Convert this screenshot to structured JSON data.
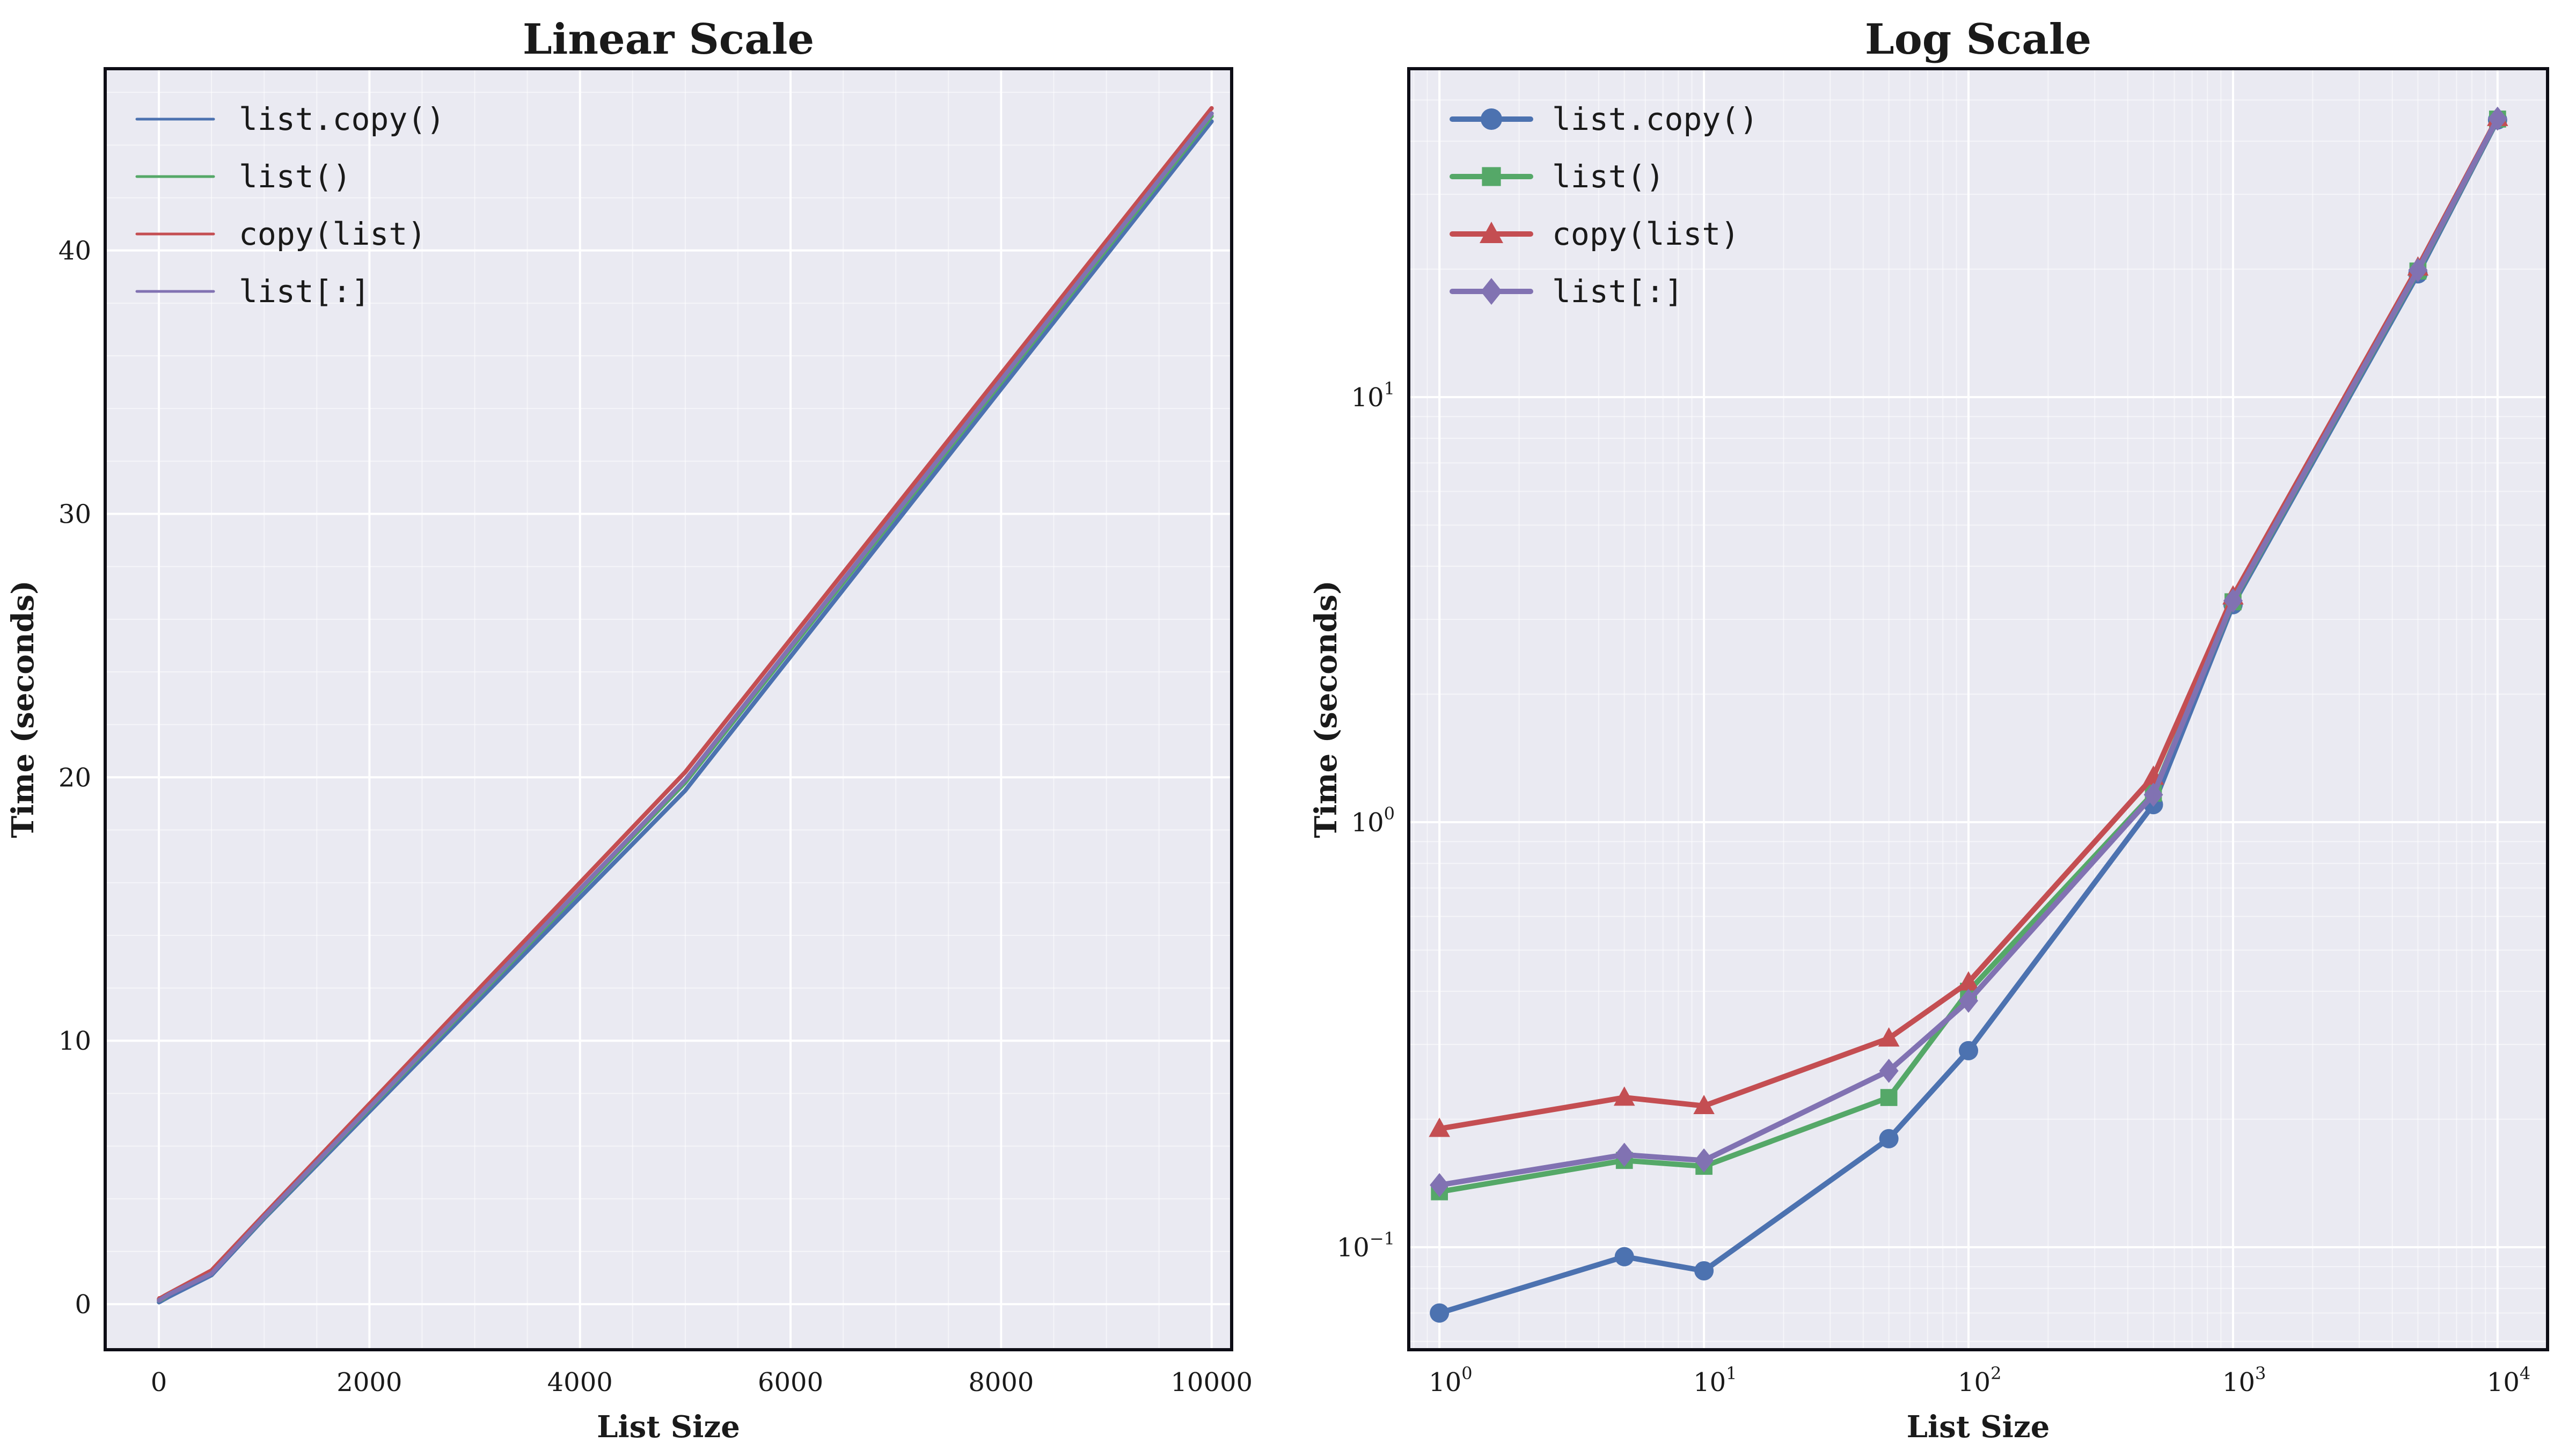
{
  "figure": {
    "background": "#ffffff",
    "axes_background": "#eaeaf2",
    "grid_major_color": "#ffffff",
    "grid_minor_color": "rgba(255,255,255,0.5)",
    "spine_color": "#0d0d15",
    "text_color": "#1a1a1a"
  },
  "chart_data": [
    {
      "type": "line",
      "title": "Linear Scale",
      "xlabel": "List Size",
      "ylabel": "Time (seconds)",
      "xscale": "linear",
      "yscale": "linear",
      "xlim": [
        -510,
        10190
      ],
      "ylim": [
        -1.73,
        46.9
      ],
      "grid": "both",
      "legend_position": "upper-left",
      "legend_show_markers": false,
      "xticks": [
        {
          "v": 0,
          "label": "0"
        },
        {
          "v": 2000,
          "label": "2000"
        },
        {
          "v": 4000,
          "label": "4000"
        },
        {
          "v": 6000,
          "label": "6000"
        },
        {
          "v": 8000,
          "label": "8000"
        },
        {
          "v": 10000,
          "label": "10000"
        }
      ],
      "yticks": [
        {
          "v": 0,
          "label": "0"
        },
        {
          "v": 10,
          "label": "10"
        },
        {
          "v": 20,
          "label": "20"
        },
        {
          "v": 30,
          "label": "30"
        },
        {
          "v": 40,
          "label": "40"
        }
      ],
      "minor": {
        "x_step": 500,
        "x_major": 2000,
        "y_step": 2,
        "y_major": 10
      },
      "x": [
        1,
        5,
        10,
        50,
        100,
        500,
        1000,
        5000,
        10000
      ],
      "series": [
        {
          "name": "list.copy()",
          "color": "#4c72b0",
          "marker": "none",
          "values": [
            0.07,
            0.095,
            0.088,
            0.18,
            0.29,
            1.1,
            3.25,
            19.5,
            44.9
          ]
        },
        {
          "name": "list()",
          "color": "#55a868",
          "marker": "none",
          "values": [
            0.135,
            0.16,
            0.155,
            0.225,
            0.4,
            1.17,
            3.3,
            19.8,
            45.1
          ]
        },
        {
          "name": "copy(list)",
          "color": "#c44e52",
          "marker": "none",
          "values": [
            0.19,
            0.225,
            0.215,
            0.31,
            0.42,
            1.28,
            3.4,
            20.2,
            45.4
          ]
        },
        {
          "name": "list[:]",
          "color": "#8172b2",
          "marker": "none",
          "values": [
            0.14,
            0.165,
            0.16,
            0.26,
            0.38,
            1.16,
            3.32,
            19.9,
            45.2
          ]
        }
      ]
    },
    {
      "type": "line",
      "title": "Log Scale",
      "xlabel": "List Size",
      "ylabel": "Time (seconds)",
      "xscale": "log",
      "yscale": "log",
      "xlim_log10": [
        -0.116,
        4.189
      ],
      "ylim_log10": [
        -1.2412,
        1.7727
      ],
      "grid": "both",
      "legend_position": "upper-left",
      "legend_show_markers": true,
      "xticks": [
        {
          "v": 1,
          "base": "10",
          "exp": "0"
        },
        {
          "v": 10,
          "base": "10",
          "exp": "1"
        },
        {
          "v": 100,
          "base": "10",
          "exp": "2"
        },
        {
          "v": 1000,
          "base": "10",
          "exp": "3"
        },
        {
          "v": 10000,
          "base": "10",
          "exp": "4"
        }
      ],
      "yticks": [
        {
          "v": 10,
          "base": "10",
          "exp": "1"
        },
        {
          "v": 1,
          "base": "10",
          "exp": "0"
        },
        {
          "v": 0.1,
          "base": "10",
          "exp": "−1"
        }
      ],
      "minor": {
        "log_x": true,
        "log_y": true
      },
      "x": [
        1,
        5,
        10,
        50,
        100,
        500,
        1000,
        5000,
        10000
      ],
      "series": [
        {
          "name": "list.copy()",
          "color": "#4c72b0",
          "marker": "circle",
          "values": [
            0.07,
            0.095,
            0.088,
            0.18,
            0.29,
            1.1,
            3.25,
            19.5,
            44.9
          ]
        },
        {
          "name": "list()",
          "color": "#55a868",
          "marker": "square",
          "values": [
            0.135,
            0.16,
            0.155,
            0.225,
            0.4,
            1.17,
            3.3,
            19.8,
            45.1
          ]
        },
        {
          "name": "copy(list)",
          "color": "#c44e52",
          "marker": "triangle",
          "values": [
            0.19,
            0.225,
            0.215,
            0.31,
            0.42,
            1.28,
            3.4,
            20.2,
            45.4
          ]
        },
        {
          "name": "list[:]",
          "color": "#8172b2",
          "marker": "diamond",
          "values": [
            0.14,
            0.165,
            0.16,
            0.26,
            0.38,
            1.16,
            3.32,
            19.9,
            45.2
          ]
        }
      ]
    }
  ]
}
